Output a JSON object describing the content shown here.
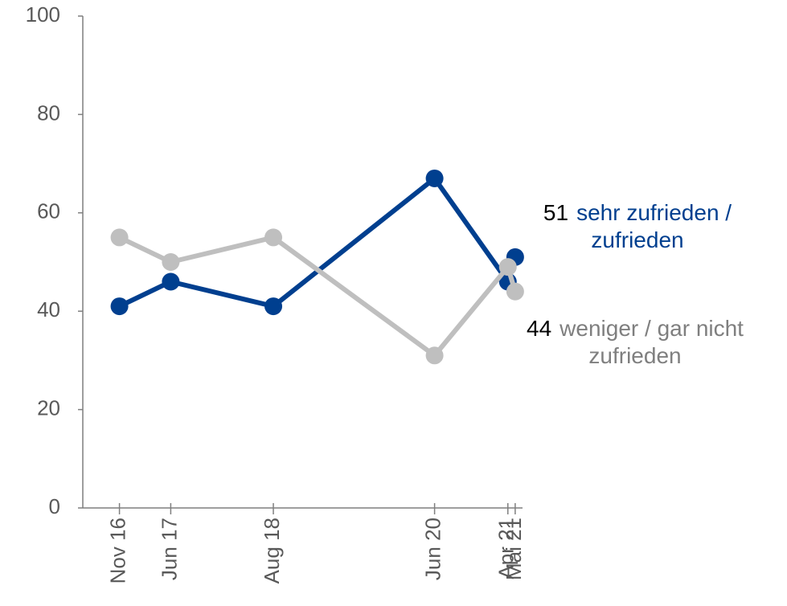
{
  "chart_data": {
    "type": "line",
    "x": [
      "2016-11",
      "2017-06",
      "2018-08",
      "2020-06",
      "2021-04",
      "2021-05"
    ],
    "xlim": [
      "2016-06",
      "2021-06"
    ],
    "xticks": [
      {
        "value": "2016-11",
        "label": "Nov 16"
      },
      {
        "value": "2017-06",
        "label": "Jun 17"
      },
      {
        "value": "2018-08",
        "label": "Aug 18"
      },
      {
        "value": "2020-06",
        "label": "Jun 20"
      },
      {
        "value": "2021-04",
        "label": "Apr 21"
      },
      {
        "value": "2021-05",
        "label": "Mai 21"
      }
    ],
    "ylim": [
      0,
      100
    ],
    "yticks": [
      0,
      20,
      40,
      60,
      80,
      100
    ],
    "series": [
      {
        "name": "sehr zufrieden / zufrieden",
        "color": "#003f8f",
        "values": [
          41,
          46,
          41,
          67,
          46,
          51
        ]
      },
      {
        "name": "weniger / gar nicht zufrieden",
        "color": "#bfbfbf",
        "values": [
          55,
          50,
          55,
          31,
          49,
          44
        ]
      }
    ]
  }
}
